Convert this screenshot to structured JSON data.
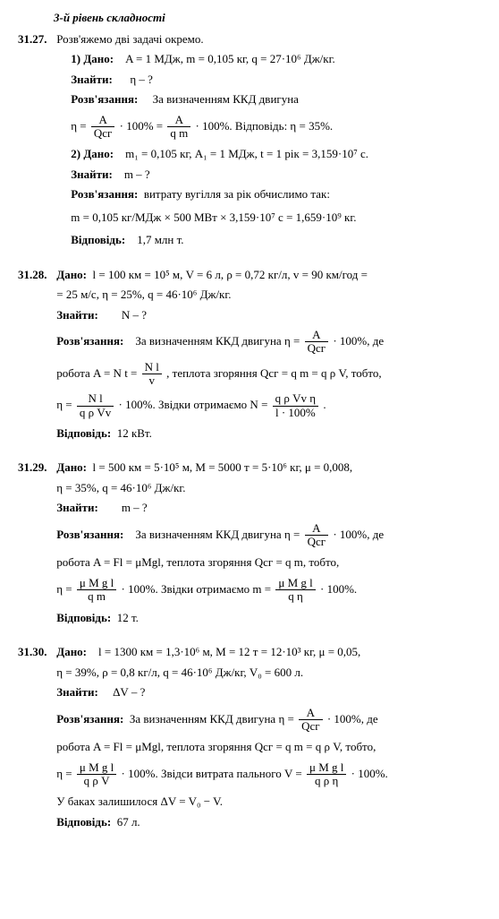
{
  "level_title": "3-й рівень складності",
  "problems": {
    "p1": {
      "num": "31.27.",
      "intro": "Розв'яжемо дві задачі окремо.",
      "sub1_given_label": "1) Дано:",
      "sub1_given": "A = 1 МДж, m = 0,105 кг, q = 27·10⁶ Дж/кг.",
      "sub1_find_label": "Знайти:",
      "sub1_find": "η – ?",
      "sub1_sol_label": "Розв'язання:",
      "sub1_sol1": "За визначенням ККД двигуна",
      "sub1_eq_lhs": "η = ",
      "sub1_frac1_num": "A",
      "sub1_frac1_den": "Qсг",
      "sub1_eq_mid": " · 100% = ",
      "sub1_frac2_num": "A",
      "sub1_frac2_den": "q m",
      "sub1_eq_rhs": " · 100%. Відповідь: η = 35%.",
      "sub2_given_label": "2) Дано:",
      "sub2_given": "m₁ = 0,105 кг, A₁ = 1 МДж, t = 1 рік = 3,159·10⁷ с.",
      "sub2_find_label": "Знайти:",
      "sub2_find": "m – ?",
      "sub2_sol_label": "Розв'язання:",
      "sub2_sol1": "витрату вугілля за рік обчислимо так:",
      "sub2_eq": "m = 0,105 кг/МДж × 500 МВт × 3,159·10⁷ с = 1,659·10⁹ кг.",
      "sub2_ans_label": "Відповідь:",
      "sub2_ans": "1,7 млн т."
    },
    "p2": {
      "num": "31.28.",
      "given_label": "Дано:",
      "given_l1": "l = 100 км = 10⁵ м,  V = 6 л,  ρ = 0,72 кг/л,  v = 90 км/год =",
      "given_l2": "= 25 м/с, η = 25%, q = 46·10⁶ Дж/кг.",
      "find_label": "Знайти:",
      "find": "N – ?",
      "sol_label": "Розв'язання:",
      "sol_l1_a": "За визначенням ККД двигуна  η = ",
      "sol_frac1_num": "A",
      "sol_frac1_den": "Qсг",
      "sol_l1_b": " · 100%, де",
      "sol_l2_a": "робота  A = N t = ",
      "sol_frac2_num": "N l",
      "sol_frac2_den": "v",
      "sol_l2_b": ", теплота згоряння  Qсг = q m = q ρ V,  тобто,",
      "sol_l3_a": "η = ",
      "sol_frac3_num": "N l",
      "sol_frac3_den": "q ρ Vv",
      "sol_l3_b": " · 100%. Звідки отримаємо  N = ",
      "sol_frac4_num": "q ρ Vv η",
      "sol_frac4_den": "l · 100%",
      "sol_l3_c": " .",
      "ans_label": "Відповідь:",
      "ans": "12 кВт."
    },
    "p3": {
      "num": "31.29.",
      "given_label": "Дано:",
      "given_l1": "l = 500 км = 5·10⁵ м, M = 5000 т = 5·10⁶ кг,  μ = 0,008,",
      "given_l2": "η = 35%, q = 46·10⁶ Дж/кг.",
      "find_label": "Знайти:",
      "find": "m – ?",
      "sol_label": "Розв'язання:",
      "sol_l1_a": "За визначенням ККД двигуна  η = ",
      "sol_frac1_num": "A",
      "sol_frac1_den": "Qсг",
      "sol_l1_b": " · 100%, де",
      "sol_l2": "робота  A = Fl = μMgl, теплота згоряння  Qсг = q m,  тобто,",
      "sol_l3_a": "η = ",
      "sol_frac3_num": "μ M g l",
      "sol_frac3_den": "q m",
      "sol_l3_b": " · 100%. Звідки отримаємо  m = ",
      "sol_frac4_num": "μ M g l",
      "sol_frac4_den": "q η",
      "sol_l3_c": " · 100%.",
      "ans_label": "Відповідь:",
      "ans": "12 т."
    },
    "p4": {
      "num": "31.30.",
      "given_label": "Дано:",
      "given_l1": "l = 1300 км = 1,3·10⁶ м, M = 12 т = 12·10³ кг,  μ = 0,05,",
      "given_l2": "η = 39%, ρ = 0,8 кг/л, q = 46·10⁶ Дж/кг, V₀ = 600 л.",
      "find_label": "Знайти:",
      "find": "ΔV – ?",
      "sol_label": "Розв'язання:",
      "sol_l1_a": "За визначенням ККД двигуна  η = ",
      "sol_frac1_num": "A",
      "sol_frac1_den": "Qсг",
      "sol_l1_b": " · 100%, де",
      "sol_l2": "робота  A = Fl = μMgl, теплота згоряння  Qсг = q m = q ρ V,  тобто,",
      "sol_l3_a": "η = ",
      "sol_frac3_num": "μ M g l",
      "sol_frac3_den": "q ρ V",
      "sol_l3_b": " · 100%. Звідси витрата пального  V = ",
      "sol_frac4_num": "μ M g l",
      "sol_frac4_den": "q ρ η",
      "sol_l3_c": " · 100%.",
      "sol_l4": "У баках залишилося  ΔV = V₀ − V.",
      "ans_label": "Відповідь:",
      "ans": "67 л."
    }
  }
}
